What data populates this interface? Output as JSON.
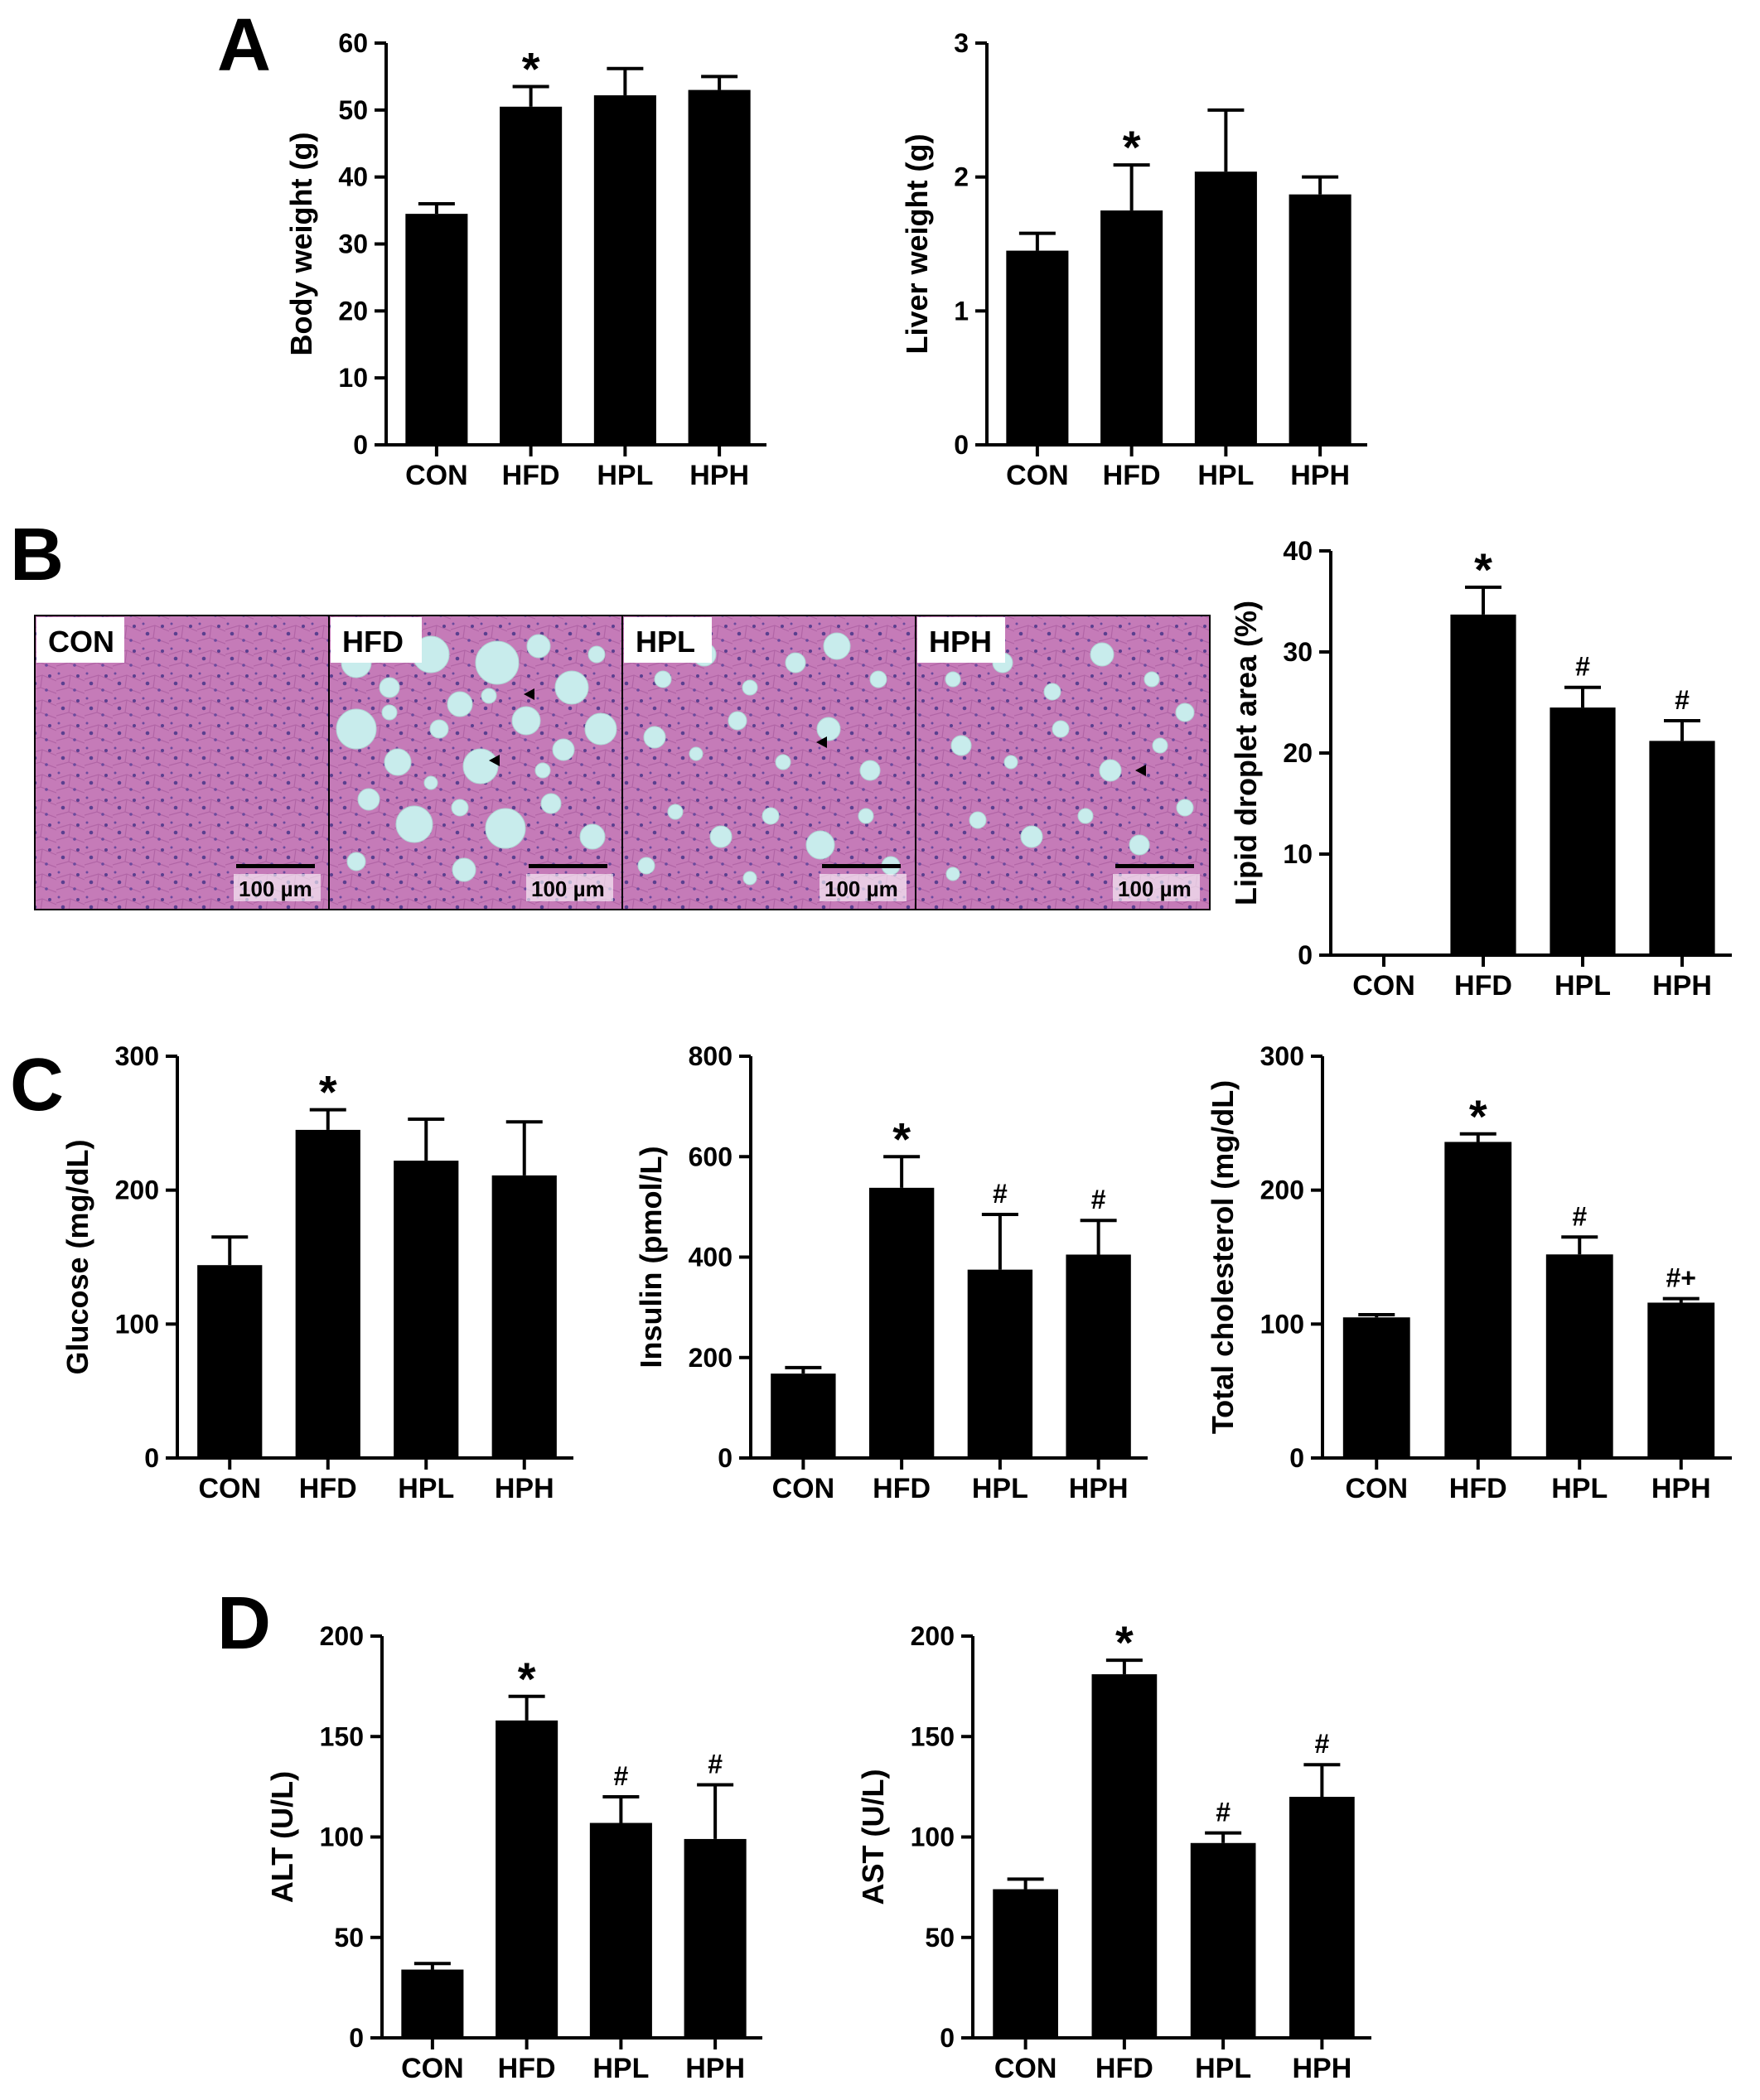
{
  "panels": {
    "A": "A",
    "B": "B",
    "C": "C",
    "D": "D"
  },
  "histology": {
    "scale_bar": "100 µm",
    "images": [
      {
        "label": "CON",
        "steatosis": "none"
      },
      {
        "label": "HFD",
        "steatosis": "severe"
      },
      {
        "label": "HPL",
        "steatosis": "moderate"
      },
      {
        "label": "HPH",
        "steatosis": "moderate"
      }
    ],
    "colors": {
      "tissue": "#c57bb8",
      "nuclei": "#5a3f8f",
      "droplet": "#c8ecec",
      "border": "#000000"
    }
  },
  "chart_data": [
    {
      "type": "bar",
      "panel": "A",
      "categories": [
        "CON",
        "HFD",
        "HPL",
        "HPH"
      ],
      "values": [
        34.5,
        50.5,
        52.2,
        53.0
      ],
      "errors": [
        1.5,
        3.0,
        4.0,
        2.0
      ],
      "annotations": [
        "",
        "*",
        "",
        ""
      ],
      "ylabel": "Body weight (g)",
      "ylim": [
        0,
        60
      ],
      "yticks": [
        0,
        10,
        20,
        30,
        40,
        50,
        60
      ],
      "bar_color": "#000000"
    },
    {
      "type": "bar",
      "panel": "A",
      "categories": [
        "CON",
        "HFD",
        "HPL",
        "HPH"
      ],
      "values": [
        1.45,
        1.75,
        2.04,
        1.87
      ],
      "errors": [
        0.13,
        0.34,
        0.46,
        0.13
      ],
      "annotations": [
        "",
        "*",
        "",
        ""
      ],
      "ylabel": "Liver weight (g)",
      "ylim": [
        0,
        3
      ],
      "yticks": [
        0,
        1,
        2,
        3
      ],
      "bar_color": "#000000"
    },
    {
      "type": "bar",
      "panel": "B",
      "categories": [
        "CON",
        "HFD",
        "HPL",
        "HPH"
      ],
      "values": [
        0,
        33.7,
        24.5,
        21.2
      ],
      "errors": [
        0,
        2.7,
        2.0,
        2.0
      ],
      "annotations": [
        "",
        "*",
        "#",
        "#"
      ],
      "ylabel": "Lipid droplet area (%)",
      "ylim": [
        0,
        40
      ],
      "yticks": [
        0,
        10,
        20,
        30,
        40
      ],
      "bar_color": "#000000"
    },
    {
      "type": "bar",
      "panel": "C",
      "categories": [
        "CON",
        "HFD",
        "HPL",
        "HPH"
      ],
      "values": [
        144,
        245,
        222,
        211
      ],
      "errors": [
        21,
        15,
        31,
        40
      ],
      "annotations": [
        "",
        "*",
        "",
        ""
      ],
      "ylabel": "Glucose (mg/dL)",
      "ylim": [
        0,
        300
      ],
      "yticks": [
        0,
        100,
        200,
        300
      ],
      "bar_color": "#000000"
    },
    {
      "type": "bar",
      "panel": "C",
      "categories": [
        "CON",
        "HFD",
        "HPL",
        "HPH"
      ],
      "values": [
        168,
        538,
        375,
        405
      ],
      "errors": [
        12,
        62,
        110,
        68
      ],
      "annotations": [
        "",
        "*",
        "#",
        "#"
      ],
      "ylabel": "Insulin (pmol/L)",
      "ylim": [
        0,
        800
      ],
      "yticks": [
        0,
        200,
        400,
        600,
        800
      ],
      "bar_color": "#000000"
    },
    {
      "type": "bar",
      "panel": "C",
      "categories": [
        "CON",
        "HFD",
        "HPL",
        "HPH"
      ],
      "values": [
        105,
        236,
        152,
        116
      ],
      "errors": [
        2,
        6,
        13,
        3
      ],
      "annotations": [
        "",
        "*",
        "#",
        "#+"
      ],
      "ylabel": "Total cholesterol (mg/dL)",
      "ylim": [
        0,
        300
      ],
      "yticks": [
        0,
        100,
        200,
        300
      ],
      "bar_color": "#000000"
    },
    {
      "type": "bar",
      "panel": "D",
      "categories": [
        "CON",
        "HFD",
        "HPL",
        "HPH"
      ],
      "values": [
        34,
        158,
        107,
        99
      ],
      "errors": [
        3,
        12,
        13,
        27
      ],
      "annotations": [
        "",
        "*",
        "#",
        "#"
      ],
      "ylabel": "ALT (U/L)",
      "ylim": [
        0,
        200
      ],
      "yticks": [
        0,
        50,
        100,
        150,
        200
      ],
      "bar_color": "#000000"
    },
    {
      "type": "bar",
      "panel": "D",
      "categories": [
        "CON",
        "HFD",
        "HPL",
        "HPH"
      ],
      "values": [
        74,
        181,
        97,
        120
      ],
      "errors": [
        5,
        7,
        5,
        16
      ],
      "annotations": [
        "",
        "*",
        "#",
        "#"
      ],
      "ylabel": "AST (U/L)",
      "ylim": [
        0,
        200
      ],
      "yticks": [
        0,
        50,
        100,
        150,
        200
      ],
      "bar_color": "#000000"
    }
  ]
}
